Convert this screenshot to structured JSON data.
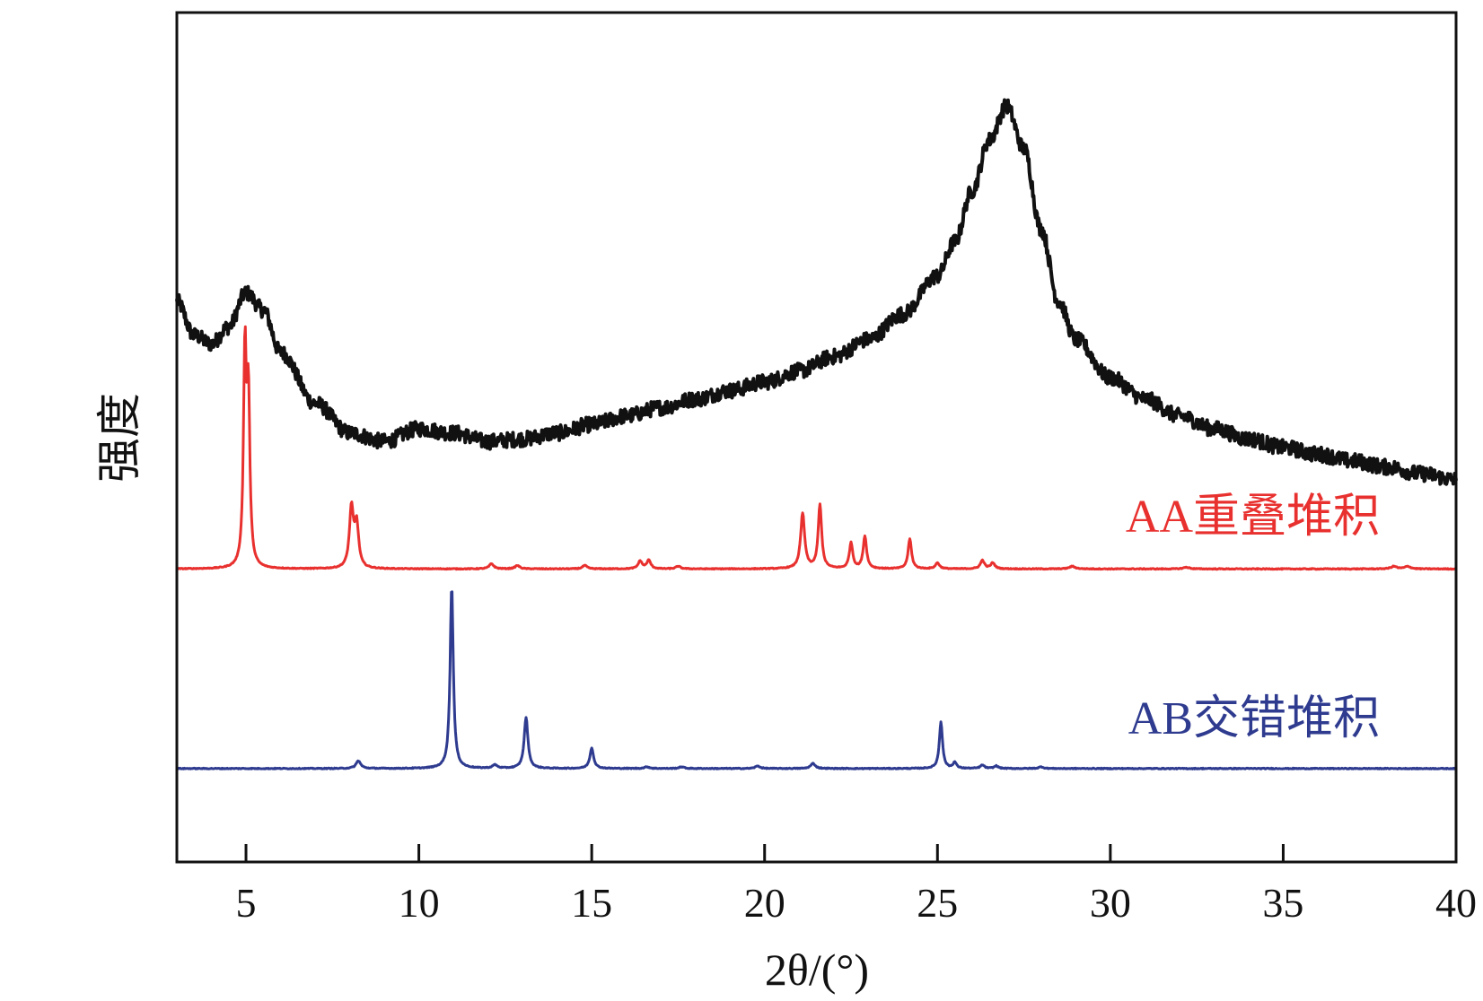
{
  "chart_data": {
    "type": "line",
    "title": "",
    "xlabel": "2θ/(°)",
    "ylabel": "强度",
    "xlim": [
      3,
      40
    ],
    "ylim": [
      0,
      100
    ],
    "x_ticks": [
      5,
      10,
      15,
      20,
      25,
      30,
      35,
      40
    ],
    "x_tick_labels": [
      "5",
      "10",
      "15",
      "20",
      "25",
      "30",
      "35",
      "40"
    ],
    "y_ticks_shown": false,
    "grid": false,
    "legend": "inline-right",
    "series": [
      {
        "name": "",
        "id": "experimental",
        "color": "#111111",
        "stroke_width": 4,
        "noise": 0.9,
        "x": [
          3.0,
          3.5,
          4.0,
          4.5,
          5.0,
          5.5,
          6.0,
          7.0,
          8.0,
          9.0,
          10.0,
          11.0,
          12.0,
          13.0,
          14.0,
          15.0,
          16.0,
          17.0,
          18.0,
          19.0,
          20.0,
          21.0,
          22.0,
          23.0,
          24.0,
          25.0,
          25.5,
          26.0,
          26.5,
          27.0,
          27.5,
          28.0,
          28.5,
          29.0,
          30.0,
          31.0,
          32.0,
          33.0,
          34.0,
          35.0,
          36.0,
          37.0,
          38.0,
          39.0,
          40.0
        ],
        "values": [
          66.0,
          62.0,
          61.0,
          63.0,
          67.0,
          65.0,
          60.0,
          54.0,
          50.5,
          49.5,
          51.0,
          50.5,
          49.5,
          49.8,
          50.5,
          51.5,
          52.5,
          53.5,
          54.5,
          55.5,
          56.5,
          57.8,
          59.5,
          61.5,
          64.5,
          69.0,
          73.0,
          79.0,
          85.0,
          89.0,
          84.0,
          74.5,
          66.0,
          61.5,
          57.0,
          54.5,
          52.5,
          51.0,
          49.8,
          48.8,
          48.0,
          47.2,
          46.5,
          45.7,
          45.0
        ]
      },
      {
        "name": "AA重叠堆积",
        "id": "aa-stacking",
        "color": "#e8312f",
        "stroke_width": 3,
        "baseline": 34.5,
        "noise": 0.05,
        "peaks": [
          {
            "x": 4.97,
            "h": 25.0,
            "w": 0.05
          },
          {
            "x": 5.07,
            "h": 19.0,
            "w": 0.05
          },
          {
            "x": 8.05,
            "h": 7.0,
            "w": 0.07
          },
          {
            "x": 8.2,
            "h": 5.0,
            "w": 0.07
          },
          {
            "x": 12.1,
            "h": 0.6,
            "w": 0.08
          },
          {
            "x": 12.85,
            "h": 0.4,
            "w": 0.08
          },
          {
            "x": 14.8,
            "h": 0.4,
            "w": 0.08
          },
          {
            "x": 16.4,
            "h": 0.9,
            "w": 0.07
          },
          {
            "x": 16.65,
            "h": 1.0,
            "w": 0.07
          },
          {
            "x": 17.5,
            "h": 0.3,
            "w": 0.08
          },
          {
            "x": 21.1,
            "h": 6.5,
            "w": 0.07
          },
          {
            "x": 21.6,
            "h": 7.5,
            "w": 0.06
          },
          {
            "x": 22.5,
            "h": 3.0,
            "w": 0.06
          },
          {
            "x": 22.9,
            "h": 3.8,
            "w": 0.06
          },
          {
            "x": 24.2,
            "h": 3.5,
            "w": 0.06
          },
          {
            "x": 25.0,
            "h": 0.7,
            "w": 0.07
          },
          {
            "x": 26.3,
            "h": 1.0,
            "w": 0.07
          },
          {
            "x": 26.6,
            "h": 0.7,
            "w": 0.07
          },
          {
            "x": 28.9,
            "h": 0.3,
            "w": 0.1
          },
          {
            "x": 32.2,
            "h": 0.2,
            "w": 0.1
          },
          {
            "x": 38.2,
            "h": 0.3,
            "w": 0.1
          },
          {
            "x": 38.6,
            "h": 0.3,
            "w": 0.1
          }
        ]
      },
      {
        "name": "AB交错堆积",
        "id": "ab-stacking",
        "color": "#2e3b8f",
        "stroke_width": 3,
        "baseline": 11.0,
        "noise": 0.05,
        "peaks": [
          {
            "x": 8.25,
            "h": 0.9,
            "w": 0.08
          },
          {
            "x": 10.95,
            "h": 21.5,
            "w": 0.055
          },
          {
            "x": 12.2,
            "h": 0.4,
            "w": 0.08
          },
          {
            "x": 13.1,
            "h": 6.0,
            "w": 0.065
          },
          {
            "x": 15.0,
            "h": 2.4,
            "w": 0.065
          },
          {
            "x": 16.6,
            "h": 0.2,
            "w": 0.08
          },
          {
            "x": 17.6,
            "h": 0.2,
            "w": 0.08
          },
          {
            "x": 19.8,
            "h": 0.3,
            "w": 0.08
          },
          {
            "x": 21.4,
            "h": 0.6,
            "w": 0.08
          },
          {
            "x": 25.1,
            "h": 5.5,
            "w": 0.055
          },
          {
            "x": 25.5,
            "h": 0.7,
            "w": 0.06
          },
          {
            "x": 26.3,
            "h": 0.4,
            "w": 0.07
          },
          {
            "x": 26.7,
            "h": 0.3,
            "w": 0.07
          },
          {
            "x": 28.0,
            "h": 0.2,
            "w": 0.08
          }
        ]
      }
    ]
  }
}
